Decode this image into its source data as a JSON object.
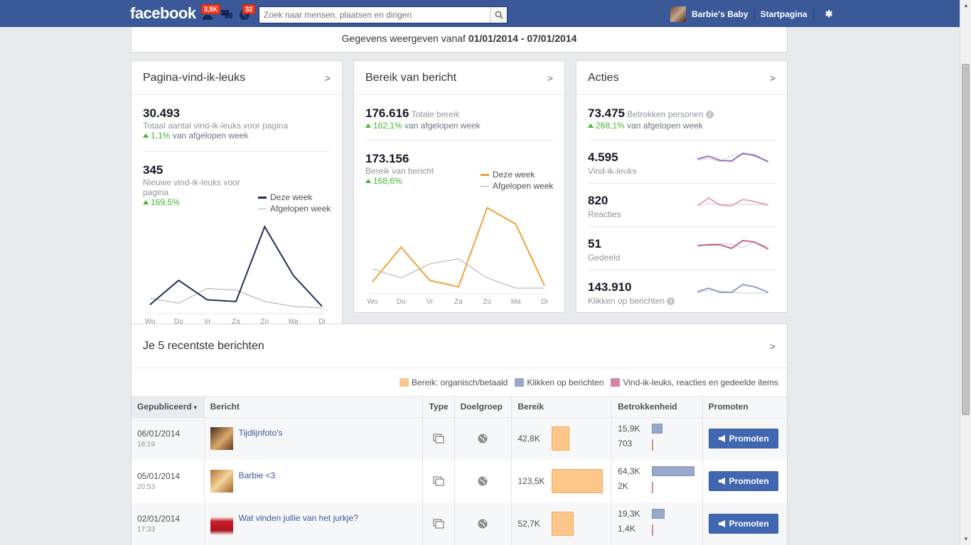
{
  "topbar": {
    "logo": "facebook",
    "friend_badge": "3,5K",
    "notif_badge": "32",
    "search_placeholder": "Zoek naar mensen, plaatsen en dingen",
    "user_name": "Barbie's Baby",
    "home_label": "Startpagina"
  },
  "daterange": {
    "prefix": "Gegevens weergeven vanaf",
    "range": "01/01/2014 - 07/01/2014"
  },
  "likes_card": {
    "title": "Pagina-vind-ik-leuks",
    "total": "30.493",
    "total_label": "Totaal aantal vind-ik-leuks voor pagina",
    "total_change": "1,1%",
    "total_change_suffix": "van afgelopen week",
    "new": "345",
    "new_label_1": "Nieuwe vind-ik-leuks voor",
    "new_label_2": "pagina",
    "new_change": "169,5%",
    "legend_this": "Deze week",
    "legend_last": "Afgelopen week"
  },
  "reach_card": {
    "title": "Bereik van bericht",
    "total": "176.616",
    "total_label": "Totale bereik",
    "total_change": "162,1%",
    "total_change_suffix": "van afgelopen week",
    "post": "173.156",
    "post_label": "Bereik van bericht",
    "post_change": "168,6%",
    "legend_this": "Deze week",
    "legend_last": "Afgelopen week"
  },
  "actions_card": {
    "title": "Acties",
    "total": "73.475",
    "total_label": "Betrokken personen",
    "total_change": "268,1%",
    "total_change_suffix": "van afgelopen week",
    "rows": [
      {
        "num": "4.595",
        "label": "Vind-ik-leuks",
        "color": "#9b6fc0"
      },
      {
        "num": "820",
        "label": "Reacties",
        "color": "#e8a3bd"
      },
      {
        "num": "51",
        "label": "Gedeeld",
        "color": "#c56586"
      },
      {
        "num": "143.910",
        "label": "Klikken op berichten",
        "color": "#8d9fc5"
      }
    ]
  },
  "chart_data": [
    {
      "type": "line",
      "categories": [
        "Wo",
        "Do",
        "Vr",
        "Za",
        "Zo",
        "Ma",
        "Di"
      ],
      "series": [
        {
          "name": "Deze week",
          "values": [
            2,
            17,
            5,
            4,
            50,
            20,
            1
          ],
          "color": "#1f3057"
        },
        {
          "name": "Afgelopen week",
          "values": [
            6,
            3,
            12,
            11,
            4,
            1,
            0
          ],
          "color": "#aaaaaa"
        }
      ],
      "ylim": [
        0,
        55
      ]
    },
    {
      "type": "line",
      "categories": [
        "Wo",
        "Do",
        "Vr",
        "Za",
        "Zo",
        "Ma",
        "Di"
      ],
      "series": [
        {
          "name": "Deze week",
          "values": [
            5,
            32,
            6,
            1,
            63,
            50,
            2
          ],
          "color": "#f4a03a"
        },
        {
          "name": "Afgelopen week",
          "values": [
            15,
            8,
            19,
            23,
            8,
            0,
            0
          ],
          "color": "#aaaaaa"
        }
      ],
      "ylim": [
        0,
        70
      ]
    }
  ],
  "recent": {
    "title": "Je 5 recentste berichten",
    "legend": [
      {
        "label": "Bereik: organisch/betaald",
        "color": "#fdc68b"
      },
      {
        "label": "Klikken op berichten",
        "color": "#99a8c9"
      },
      {
        "label": "Vind-ik-leuks, reacties en gedeelde items",
        "color": "#d4879d"
      }
    ],
    "columns": {
      "published": "Gepubliceerd",
      "post": "Bericht",
      "type": "Type",
      "audience": "Doelgroep",
      "reach": "Bereik",
      "engagement": "Betrokkenheid",
      "promote": "Promoten"
    },
    "rows": [
      {
        "date": "06/01/2014",
        "time": "18:19",
        "title": "Tijdlijnfoto's",
        "reach": "42,8K",
        "reach_value": 42.8,
        "clicks": "15,9K",
        "clicks_value": 15.9,
        "likes": "703",
        "promote": "Promoten"
      },
      {
        "date": "05/01/2014",
        "time": "20:53",
        "title": "Barbie <3",
        "reach": "123,5K",
        "reach_value": 123.5,
        "clicks": "64,3K",
        "clicks_value": 64.3,
        "likes": "2K",
        "promote": "Promoten"
      },
      {
        "date": "02/01/2014",
        "time": "17:33",
        "title": "Wat vinden jullie van het jurkje?",
        "reach": "52,7K",
        "reach_value": 52.7,
        "clicks": "19,3K",
        "clicks_value": 19.3,
        "likes": "1,4K",
        "promote": "Promoten"
      }
    ]
  }
}
